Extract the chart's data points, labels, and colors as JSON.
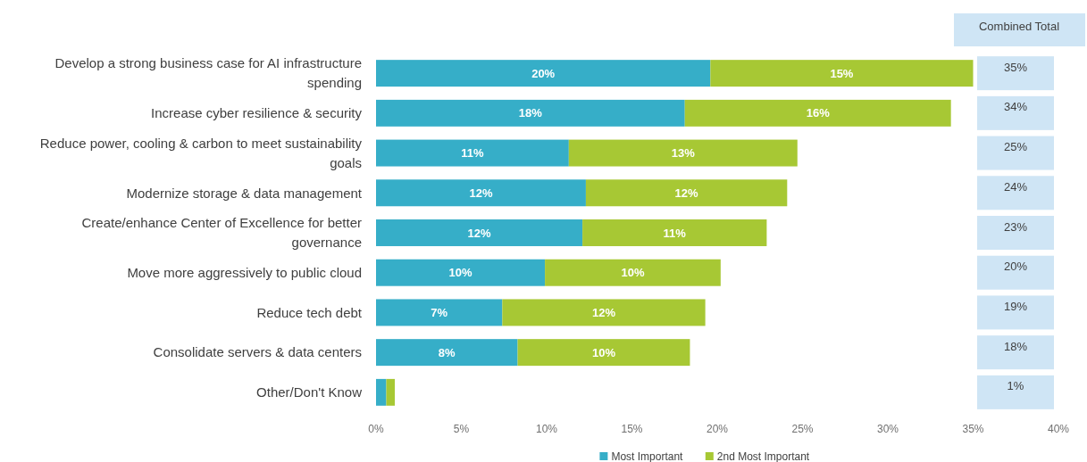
{
  "chart_data": {
    "type": "bar",
    "orientation": "horizontal",
    "stacked": true,
    "categories": [
      "Develop a strong business case for AI infrastructure spending",
      "Increase cyber resilience & security",
      "Reduce power, cooling & carbon to meet sustainability goals",
      "Modernize storage & data management",
      "Create/enhance Center of Excellence for better governance",
      "Move more aggressively to public cloud",
      "Reduce tech debt",
      "Consolidate servers & data centers",
      "Other/Don't Know"
    ],
    "series": [
      {
        "name": "Most Important",
        "color": "#36aec8",
        "values": [
          19.6,
          18.1,
          11.3,
          12.3,
          12.1,
          9.9,
          7.4,
          8.3,
          0.6
        ],
        "value_labels": [
          "20%",
          "18%",
          "11%",
          "12%",
          "12%",
          "10%",
          "7%",
          "8%",
          null
        ]
      },
      {
        "name": "2nd Most Important",
        "color": "#a7c834",
        "values": [
          15.4,
          15.6,
          13.4,
          11.8,
          10.8,
          10.3,
          11.9,
          10.1,
          0.5
        ],
        "value_labels": [
          "15%",
          "16%",
          "13%",
          "12%",
          "11%",
          "10%",
          "12%",
          "10%",
          null
        ]
      }
    ],
    "annotations": [
      "Combined Total",
      "35%",
      "34%",
      "25%",
      "24%",
      "23%",
      "20%",
      "19%",
      "18%",
      "1%"
    ],
    "xlim": [
      0,
      40
    ],
    "xticks": [
      {
        "value": 0,
        "label": "0%"
      },
      {
        "value": 5,
        "label": "5%"
      },
      {
        "value": 10,
        "label": "10%"
      },
      {
        "value": 15,
        "label": "15%"
      },
      {
        "value": 20,
        "label": "20%"
      },
      {
        "value": 25,
        "label": "25%"
      },
      {
        "value": 30,
        "label": "30%"
      },
      {
        "value": 35,
        "label": "35%"
      },
      {
        "value": 40,
        "label": "40%"
      }
    ],
    "legend": "bottom"
  }
}
